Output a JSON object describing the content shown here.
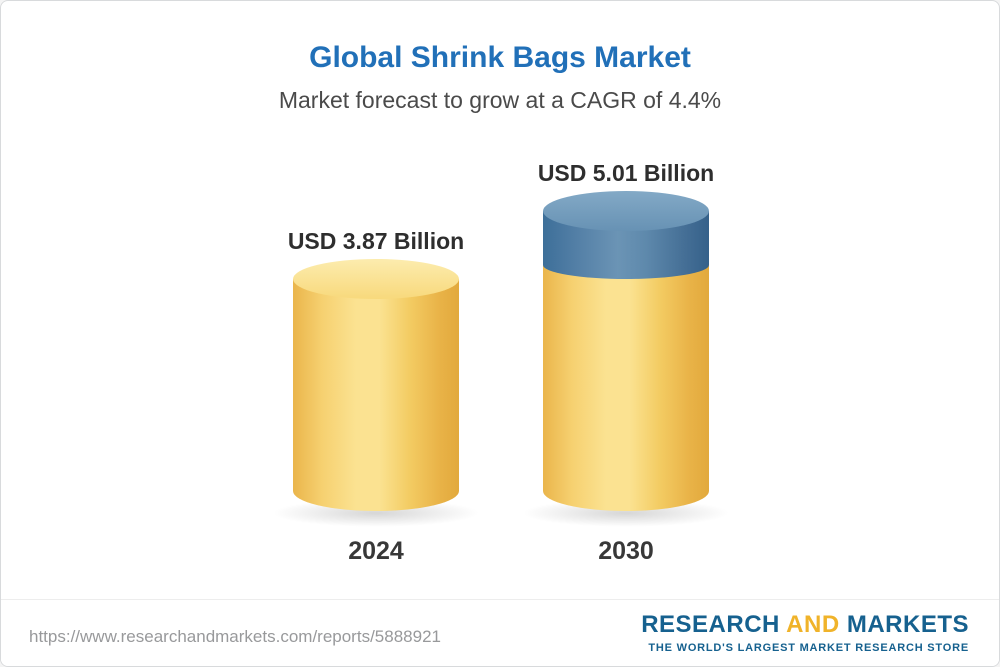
{
  "page": {
    "title": "Global Shrink Bags Market",
    "subtitle": "Market forecast to grow at a CAGR of 4.4%"
  },
  "chart_data": {
    "type": "bar",
    "style": "3d-cylinder",
    "title": "Global Shrink Bags Market",
    "subtitle": "Market forecast to grow at a CAGR of 4.4%",
    "categories": [
      "2024",
      "2030"
    ],
    "values": [
      3.87,
      5.01
    ],
    "value_labels": [
      "USD 3.87 Billion",
      "USD 5.01 Billion"
    ],
    "unit": "USD Billion",
    "cagr": "4.4%",
    "ylim": [
      0,
      5.01
    ],
    "legend": false,
    "gridlines": false,
    "colors": {
      "base_bar": "#F5CE63",
      "growth_segment": "#4A7CA3",
      "title_text": "#2170B8",
      "label_text": "#2E2E2E"
    },
    "notes": "2030 cylinder shows growth above the 2024 level as a blue top segment"
  },
  "footer": {
    "url": "https://www.researchandmarkets.com/reports/5888921",
    "logo": {
      "research": "RESEARCH",
      "and": "AND",
      "markets": "MARKETS",
      "tagline": "THE WORLD'S LARGEST MARKET RESEARCH STORE"
    },
    "colors": {
      "logo_blue": "#16618F",
      "logo_gold": "#F0B32A"
    }
  }
}
